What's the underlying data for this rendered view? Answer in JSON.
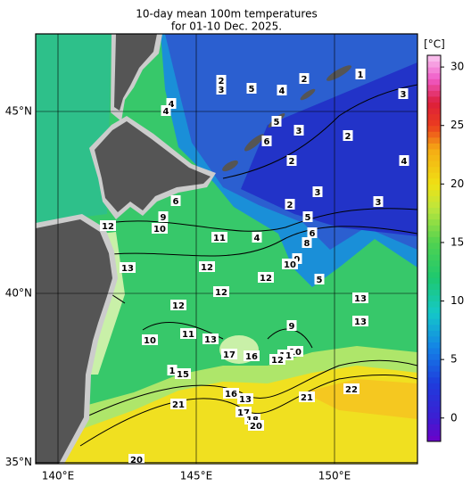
{
  "title": [
    "10-day mean 100m temperatures",
    "for 01-10 Dec. 2025."
  ],
  "map": {
    "lon_ticks": [
      {
        "value": 140,
        "label": "140°E"
      },
      {
        "value": 145,
        "label": "145°E"
      },
      {
        "value": 150,
        "label": "150°E"
      }
    ],
    "lat_ticks": [
      {
        "value": 45,
        "label": "45°N"
      },
      {
        "value": 40,
        "label": "40°N"
      },
      {
        "value": 35,
        "label": "35°N"
      }
    ],
    "contour_labels": [
      1,
      2,
      2,
      3,
      5,
      4,
      3,
      4,
      4,
      5,
      3,
      2,
      6,
      2,
      4,
      3,
      3,
      6,
      2,
      5,
      9,
      10,
      12,
      6,
      8,
      11,
      4,
      9,
      10,
      13,
      12,
      12,
      5,
      12,
      13,
      12,
      13,
      9,
      11,
      10,
      13,
      17,
      16,
      10,
      11,
      12,
      1,
      15,
      16,
      13,
      21,
      22,
      21,
      17,
      18,
      20,
      20
    ]
  },
  "colorbar": {
    "label": "[°C]",
    "lim": [
      -2,
      31
    ],
    "ticks": [
      30,
      25,
      20,
      15,
      10,
      5,
      0
    ]
  }
}
